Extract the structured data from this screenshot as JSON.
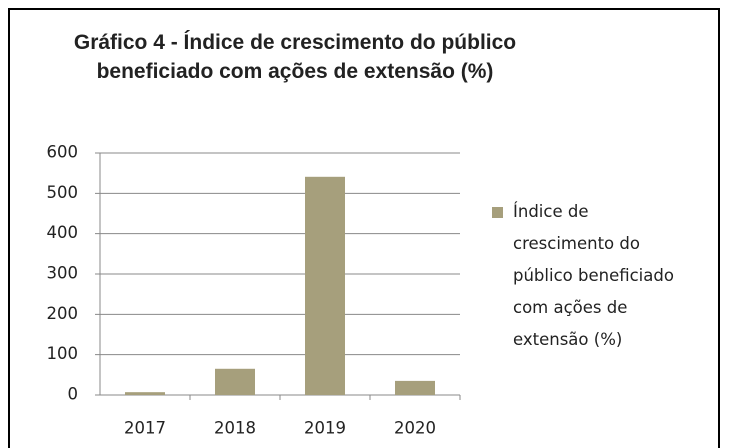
{
  "chart_data": {
    "type": "bar",
    "title": "Gráfico 4 - Índice de crescimento do público beneficiado com ações de extensão (%)",
    "categories": [
      "2017",
      "2018",
      "2019",
      "2020"
    ],
    "series": [
      {
        "name": "Índice de crescimento do público beneficiado com ações de extensão (%)",
        "color": "#a69f7c",
        "values": [
          7,
          65,
          541,
          35
        ]
      }
    ],
    "ylim": [
      0,
      600
    ],
    "yticks": [
      0,
      100,
      200,
      300,
      400,
      500,
      600
    ],
    "grid": true,
    "legend": "right"
  }
}
